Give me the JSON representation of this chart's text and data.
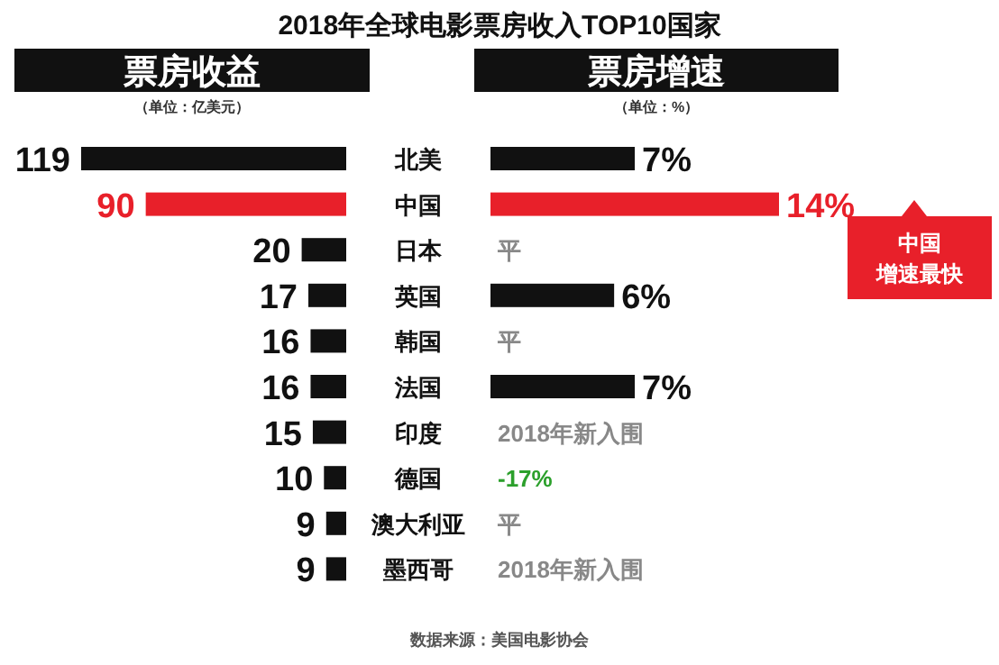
{
  "chart_data": [
    {
      "type": "other",
      "title": "2018年全球电影票房收入TOP10国家",
      "annotations": [
        "数据来源：美国电影协会"
      ]
    },
    {
      "type": "bar",
      "orientation": "horizontal",
      "title": "票房收益",
      "subtitle": "（单位：亿美元）",
      "categories": [
        "北美",
        "中国",
        "日本",
        "英国",
        "韩国",
        "法国",
        "印度",
        "德国",
        "澳大利亚",
        "墨西哥"
      ],
      "values": [
        119,
        90,
        20,
        17,
        16,
        16,
        15,
        10,
        9,
        9
      ],
      "colors": [
        "#111111",
        "#e8202a",
        "#111111",
        "#111111",
        "#111111",
        "#111111",
        "#111111",
        "#111111",
        "#111111",
        "#111111"
      ],
      "data_labels": true
    },
    {
      "type": "bar",
      "orientation": "horizontal",
      "title": "票房增速",
      "subtitle": "（单位：%）",
      "categories": [
        null,
        null,
        null,
        null,
        null,
        null,
        null,
        null,
        null,
        null
      ],
      "values": [
        7,
        14,
        0,
        6,
        0,
        7,
        null,
        null,
        0,
        null
      ],
      "value_labels": [
        "7%",
        "14%",
        "平",
        "6%",
        "平",
        "7%",
        "2018年新入围",
        "-17%",
        "平",
        "2018年新入围"
      ],
      "colors": [
        "#111111",
        "#e8202a",
        "#888888",
        "#111111",
        "#888888",
        "#111111",
        "#888888",
        "#2ca02c",
        "#888888",
        "#888888"
      ],
      "annotations": [
        "中国",
        "增速最快"
      ]
    }
  ]
}
